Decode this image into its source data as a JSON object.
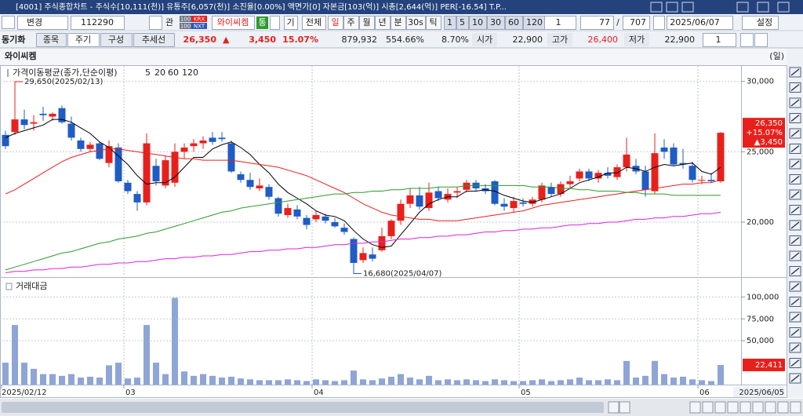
{
  "window": {
    "title": "[4001] 주식종합차트 - 주식수[10,111(천)] 유통주[6,057(천)] 소진율[0.00%] 액면가[0] 자본금[103(억)] 시총[2,644(억)] PER[-16.54] T.P..."
  },
  "toolbar": {
    "change": "변경",
    "code": "112290",
    "watch": "관",
    "market_badges": [
      {
        "count": "100",
        "label": "KRX"
      },
      {
        "count": "100",
        "label": "NXT"
      }
    ],
    "name": "와이씨켐",
    "tong": "통",
    "gi": "기",
    "all": "전체",
    "periods": [
      "일",
      "주",
      "월",
      "년",
      "분",
      "30s",
      "틱"
    ],
    "minutes": [
      "1",
      "5",
      "10",
      "30",
      "60",
      "120"
    ],
    "unit": "1",
    "count": "77",
    "separator": "/",
    "total": "707",
    "date": "2025/06/07",
    "settings": "설정"
  },
  "quote_bar": {
    "sync": "동기화",
    "tabs": [
      "종목",
      "주기",
      "구성",
      "추세선"
    ],
    "price": "26,350",
    "arrow": "▲",
    "change": "3,450",
    "rate": "15.07%",
    "volume": "879,932",
    "volume_ratio": "554.66%",
    "turnover": "8.70%",
    "open_label": "시가",
    "open": "22,900",
    "high_label": "고가",
    "high": "26,400",
    "low_label": "저가",
    "low": "22,900",
    "layout": "1"
  },
  "chart_title": "와이씨켐",
  "period_unit": "(일)",
  "chart_data": [
    {
      "type": "candlestick",
      "legend_title": "가격이동평균(종가,단순이평)",
      "up_color": "#e8201c",
      "down_color": "#1f5cc4",
      "open": [
        26200,
        26400,
        27300,
        27000,
        27700,
        27500,
        28100,
        27000,
        25800,
        25200,
        25600,
        24200,
        25300,
        22800,
        22000,
        21400,
        24000,
        22600,
        22800,
        25000,
        25400,
        25600,
        26000,
        26000,
        25600,
        23400,
        23000,
        22400,
        22500,
        21700,
        20500,
        20900,
        20300,
        20200,
        20400,
        20000,
        19600,
        18800,
        17300,
        17700,
        18000,
        19000,
        20100,
        21300,
        21900,
        21000,
        22200,
        21600,
        22100,
        22300,
        22800,
        22400,
        22900,
        21300,
        21000,
        21400,
        21300,
        21600,
        22500,
        22000,
        22700,
        23100,
        23600,
        23100,
        23500,
        23200,
        23900,
        24000,
        23600,
        22200,
        25300,
        25300,
        24200,
        24000,
        23000,
        23000,
        22900
      ],
      "high": [
        26500,
        29650,
        28000,
        27600,
        28200,
        27800,
        28300,
        27500,
        26000,
        25700,
        25700,
        25800,
        25600,
        23000,
        22200,
        26300,
        24500,
        24700,
        25600,
        25600,
        25900,
        26100,
        26400,
        26400,
        25800,
        23600,
        23500,
        23100,
        22700,
        21800,
        21300,
        21200,
        20500,
        20800,
        20600,
        20300,
        19900,
        18900,
        18200,
        18200,
        19600,
        20200,
        21600,
        22400,
        22500,
        22800,
        22500,
        22400,
        22500,
        23000,
        23000,
        22700,
        23000,
        21700,
        21800,
        21700,
        21800,
        22800,
        22800,
        22900,
        23300,
        23800,
        23800,
        23700,
        23900,
        24100,
        26000,
        24500,
        24000,
        26300,
        25900,
        25600,
        25200,
        24300,
        23300,
        23500,
        26400
      ],
      "low": [
        25200,
        26200,
        26600,
        26500,
        27200,
        27200,
        27000,
        25800,
        25000,
        25000,
        24400,
        23900,
        22800,
        22000,
        20800,
        21200,
        22600,
        22400,
        22500,
        24500,
        25000,
        25200,
        25500,
        25700,
        23500,
        22800,
        22300,
        22200,
        21600,
        20400,
        20300,
        20200,
        19500,
        20000,
        19900,
        19600,
        19100,
        16680,
        17100,
        17200,
        17900,
        18800,
        19800,
        21000,
        20900,
        20800,
        21500,
        21400,
        21700,
        22100,
        22200,
        22000,
        21200,
        20800,
        20700,
        21100,
        21100,
        21400,
        21800,
        21800,
        22400,
        22900,
        22900,
        22800,
        23100,
        23000,
        23600,
        23400,
        21800,
        22000,
        24500,
        24000,
        23800,
        22800,
        22700,
        22800,
        22800
      ],
      "close": [
        25400,
        27300,
        26900,
        27100,
        27600,
        27700,
        27100,
        26000,
        25200,
        25500,
        24500,
        25400,
        22900,
        22200,
        21400,
        25600,
        22900,
        24400,
        25000,
        25300,
        25600,
        25800,
        25700,
        25900,
        23600,
        23000,
        22500,
        22600,
        21800,
        20600,
        21000,
        20400,
        19800,
        20500,
        20100,
        19700,
        19300,
        17100,
        17800,
        17400,
        19000,
        20100,
        21300,
        21900,
        21100,
        22100,
        21700,
        22000,
        22200,
        22800,
        22400,
        22200,
        21300,
        21100,
        21500,
        21300,
        21600,
        22600,
        22000,
        22700,
        22900,
        23600,
        23100,
        23500,
        23300,
        23900,
        24800,
        23600,
        22300,
        24900,
        25000,
        24100,
        24100,
        23000,
        23000,
        22900,
        26350
      ],
      "series": [
        {
          "name": "5",
          "color": "#000000",
          "values": [
            26000,
            26300,
            26500,
            26700,
            26900,
            27300,
            27300,
            27100,
            26700,
            26300,
            25700,
            25300,
            24700,
            24100,
            23300,
            22700,
            22800,
            22800,
            23200,
            23900,
            24600,
            24600,
            25200,
            25500,
            25700,
            25300,
            24800,
            24100,
            23500,
            22700,
            22100,
            21700,
            21300,
            20800,
            20500,
            20400,
            20100,
            19400,
            18800,
            18400,
            18200,
            18300,
            19100,
            19900,
            20700,
            21300,
            21600,
            21800,
            21800,
            22200,
            22200,
            22300,
            22200,
            21900,
            21700,
            21500,
            21400,
            21600,
            21800,
            22000,
            22400,
            22800,
            23000,
            23200,
            23500,
            23500,
            23900,
            23800,
            23600,
            23900,
            24100,
            24000,
            24100,
            24200,
            23600,
            23400,
            23900
          ]
        },
        {
          "name": "20",
          "color": "#e8201c",
          "values": [
            22000,
            22300,
            22700,
            23100,
            23500,
            23900,
            24300,
            24600,
            24800,
            25000,
            25100,
            25200,
            25200,
            25100,
            25000,
            24900,
            24800,
            24700,
            24600,
            24500,
            24500,
            24400,
            24400,
            24400,
            24400,
            24300,
            24200,
            24100,
            24000,
            23900,
            23700,
            23500,
            23300,
            23000,
            22700,
            22400,
            22100,
            21700,
            21300,
            21000,
            20700,
            20500,
            20400,
            20300,
            20200,
            20200,
            20100,
            20100,
            20100,
            20200,
            20300,
            20400,
            20500,
            20600,
            20700,
            20800,
            21000,
            21200,
            21300,
            21400,
            21500,
            21600,
            21700,
            21800,
            21900,
            22000,
            22100,
            22200,
            22300,
            22400,
            22500,
            22600,
            22700,
            22700,
            22800,
            22800,
            23000
          ]
        },
        {
          "name": "60",
          "color": "#2e9a2e",
          "values": [
            16600,
            16800,
            17000,
            17200,
            17400,
            17600,
            17800,
            17900,
            18100,
            18300,
            18500,
            18600,
            18800,
            18900,
            19000,
            19200,
            19300,
            19500,
            19700,
            19900,
            20100,
            20300,
            20500,
            20700,
            20800,
            21000,
            21100,
            21200,
            21300,
            21400,
            21500,
            21600,
            21700,
            21800,
            21900,
            22000,
            22000,
            22100,
            22100,
            22200,
            22200,
            22300,
            22300,
            22400,
            22400,
            22400,
            22500,
            22500,
            22500,
            22600,
            22600,
            22600,
            22600,
            22600,
            22600,
            22600,
            22500,
            22500,
            22500,
            22400,
            22400,
            22300,
            22300,
            22200,
            22200,
            22200,
            22100,
            22100,
            22000,
            22000,
            22000,
            21900,
            21900,
            21900,
            21900,
            21900,
            21900
          ]
        },
        {
          "name": "120",
          "color": "#e020e0",
          "values": [
            16400,
            16500,
            16500,
            16600,
            16600,
            16700,
            16700,
            16800,
            16800,
            16900,
            17000,
            17000,
            17100,
            17100,
            17200,
            17200,
            17300,
            17400,
            17400,
            17500,
            17500,
            17600,
            17600,
            17700,
            17700,
            17800,
            17900,
            17900,
            18000,
            18000,
            18100,
            18100,
            18200,
            18200,
            18300,
            18400,
            18400,
            18500,
            18500,
            18600,
            18600,
            18700,
            18800,
            18800,
            18900,
            18900,
            19000,
            19000,
            19100,
            19100,
            19200,
            19300,
            19300,
            19400,
            19400,
            19500,
            19500,
            19600,
            19600,
            19700,
            19800,
            19800,
            19900,
            19900,
            20000,
            20000,
            20100,
            20200,
            20200,
            20300,
            20300,
            20400,
            20400,
            20500,
            20600,
            20600,
            20700
          ]
        }
      ],
      "ylim": [
        16150,
        31100
      ],
      "yticks": [
        {
          "value": 20000,
          "label": "20,000"
        },
        {
          "value": 25000,
          "label": "25,000"
        },
        {
          "value": 30000,
          "label": "30,000"
        }
      ],
      "grid": true,
      "annotations": [
        {
          "text": "29,650(2025/02/13)",
          "value": 29650
        },
        {
          "text": "16,680(2025/04/07)",
          "value": 16680
        }
      ],
      "last_price": {
        "value": 26350,
        "lines": [
          "26,350",
          "+15.07%",
          "▲3,450"
        ]
      }
    },
    {
      "type": "bar",
      "title": "거래대금",
      "color": "#8ea5d6",
      "categories": [
        "2025/02/12",
        null,
        null,
        null,
        null,
        null,
        null,
        null,
        null,
        null,
        null,
        null,
        null,
        "03",
        null,
        null,
        null,
        null,
        null,
        null,
        null,
        null,
        null,
        null,
        null,
        null,
        null,
        null,
        null,
        null,
        null,
        null,
        null,
        "04",
        null,
        null,
        null,
        null,
        null,
        null,
        null,
        null,
        null,
        null,
        null,
        null,
        null,
        null,
        null,
        null,
        null,
        null,
        null,
        null,
        null,
        "05",
        null,
        null,
        null,
        null,
        null,
        null,
        null,
        null,
        null,
        null,
        null,
        null,
        null,
        null,
        null,
        null,
        null,
        null,
        "06",
        null,
        null
      ],
      "values": [
        25000,
        68000,
        25000,
        18000,
        12000,
        12000,
        10000,
        12000,
        8000,
        9000,
        8000,
        22000,
        25000,
        7000,
        8000,
        68000,
        25000,
        12000,
        99000,
        15000,
        10000,
        12000,
        10000,
        8000,
        9000,
        7000,
        6000,
        5000,
        5000,
        5000,
        6000,
        5000,
        4000,
        6000,
        5000,
        4000,
        5000,
        16000,
        6000,
        5000,
        7000,
        9000,
        12000,
        8000,
        6000,
        10000,
        5000,
        6000,
        5000,
        6000,
        5000,
        4000,
        6000,
        5000,
        4000,
        4000,
        5000,
        6000,
        4000,
        5000,
        6000,
        8000,
        5000,
        5000,
        6000,
        5000,
        27000,
        8000,
        10000,
        27000,
        12000,
        8000,
        9000,
        6000,
        5000,
        4000,
        22411
      ],
      "ylim": [
        0,
        120000
      ],
      "yticks": [
        {
          "value": 50000,
          "label": "50,000"
        },
        {
          "value": 75000,
          "label": "75,000"
        },
        {
          "value": 100000,
          "label": "100,000"
        }
      ],
      "grid": true,
      "last_value": {
        "value": 22411,
        "label": "22,411"
      },
      "end_label": "2025/06/05"
    }
  ]
}
